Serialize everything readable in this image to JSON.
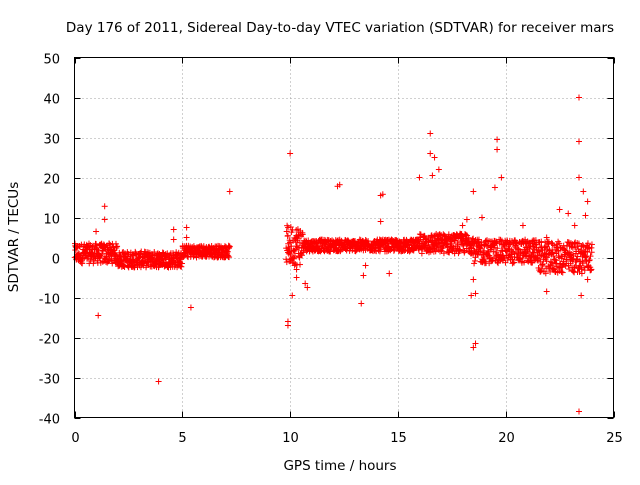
{
  "chart_data": {
    "type": "scatter",
    "title": "Day 176 of 2011, Sidereal Day-to-day VTEC variation (SDTVAR) for receiver mars",
    "xlabel": "GPS time / hours",
    "ylabel": "SDTVAR / TECUs",
    "xlim": [
      0,
      25
    ],
    "ylim": [
      -40,
      50
    ],
    "xticks": [
      0,
      5,
      10,
      15,
      20,
      25
    ],
    "yticks": [
      -40,
      -30,
      -20,
      -10,
      0,
      10,
      20,
      30,
      40,
      50
    ],
    "grid": true,
    "marker": "plus",
    "series_color": "#ff0000",
    "dense_bands": [
      {
        "x_start": 0.0,
        "x_end": 2.0,
        "y_center": 1.0,
        "y_spread": 2.5
      },
      {
        "x_start": 2.0,
        "x_end": 5.0,
        "y_center": -0.5,
        "y_spread": 2.0
      },
      {
        "x_start": 5.0,
        "x_end": 7.2,
        "y_center": 1.5,
        "y_spread": 1.5
      },
      {
        "x_start": 9.8,
        "x_end": 10.6,
        "y_center": 3.0,
        "y_spread": 5.0
      },
      {
        "x_start": 10.6,
        "x_end": 16.0,
        "y_center": 3.0,
        "y_spread": 1.5
      },
      {
        "x_start": 16.0,
        "x_end": 18.5,
        "y_center": 3.5,
        "y_spread": 2.5
      },
      {
        "x_start": 18.5,
        "x_end": 21.5,
        "y_center": 1.5,
        "y_spread": 3.0
      },
      {
        "x_start": 21.5,
        "x_end": 24.0,
        "y_center": 0.0,
        "y_spread": 4.0
      }
    ],
    "outliers": [
      {
        "x": 1.1,
        "y": -14.5
      },
      {
        "x": 1.4,
        "y": 12.8
      },
      {
        "x": 1.4,
        "y": 9.5
      },
      {
        "x": 1.0,
        "y": 6.5
      },
      {
        "x": 1.6,
        "y": 3.5
      },
      {
        "x": 3.9,
        "y": -31.0
      },
      {
        "x": 4.6,
        "y": 7.0
      },
      {
        "x": 4.6,
        "y": 4.5
      },
      {
        "x": 5.2,
        "y": 7.5
      },
      {
        "x": 5.2,
        "y": 5.0
      },
      {
        "x": 5.4,
        "y": -12.5
      },
      {
        "x": 7.2,
        "y": 16.5
      },
      {
        "x": 10.0,
        "y": 26.0
      },
      {
        "x": 9.9,
        "y": -16.0
      },
      {
        "x": 9.9,
        "y": -17.0
      },
      {
        "x": 10.1,
        "y": -9.5
      },
      {
        "x": 10.3,
        "y": -5.0
      },
      {
        "x": 10.3,
        "y": -3.0
      },
      {
        "x": 10.7,
        "y": -6.5
      },
      {
        "x": 10.8,
        "y": -7.5
      },
      {
        "x": 12.2,
        "y": 17.8
      },
      {
        "x": 12.3,
        "y": 18.2
      },
      {
        "x": 13.3,
        "y": -11.5
      },
      {
        "x": 13.4,
        "y": -4.5
      },
      {
        "x": 13.5,
        "y": -2.0
      },
      {
        "x": 14.2,
        "y": 15.5
      },
      {
        "x": 14.3,
        "y": 15.8
      },
      {
        "x": 14.2,
        "y": 9.0
      },
      {
        "x": 14.6,
        "y": -4.0
      },
      {
        "x": 16.5,
        "y": 31.0
      },
      {
        "x": 16.5,
        "y": 26.0
      },
      {
        "x": 16.7,
        "y": 25.0
      },
      {
        "x": 16.6,
        "y": 20.5
      },
      {
        "x": 16.9,
        "y": 22.0
      },
      {
        "x": 16.0,
        "y": 20.0
      },
      {
        "x": 18.0,
        "y": 8.0
      },
      {
        "x": 18.2,
        "y": 9.5
      },
      {
        "x": 18.5,
        "y": 16.5
      },
      {
        "x": 18.6,
        "y": -21.5
      },
      {
        "x": 18.5,
        "y": -22.5
      },
      {
        "x": 18.4,
        "y": -9.5
      },
      {
        "x": 18.6,
        "y": -9.0
      },
      {
        "x": 18.5,
        "y": -5.5
      },
      {
        "x": 18.9,
        "y": 10.0
      },
      {
        "x": 19.6,
        "y": 29.5
      },
      {
        "x": 19.6,
        "y": 27.0
      },
      {
        "x": 19.8,
        "y": 20.0
      },
      {
        "x": 19.5,
        "y": 17.5
      },
      {
        "x": 20.8,
        "y": 8.0
      },
      {
        "x": 21.9,
        "y": 5.0
      },
      {
        "x": 21.9,
        "y": -8.5
      },
      {
        "x": 22.5,
        "y": 12.0
      },
      {
        "x": 22.9,
        "y": 11.0
      },
      {
        "x": 23.2,
        "y": 8.0
      },
      {
        "x": 23.4,
        "y": 40.0
      },
      {
        "x": 23.4,
        "y": 29.0
      },
      {
        "x": 23.4,
        "y": 20.0
      },
      {
        "x": 23.6,
        "y": 16.5
      },
      {
        "x": 23.8,
        "y": 14.0
      },
      {
        "x": 23.5,
        "y": -9.5
      },
      {
        "x": 23.4,
        "y": -38.5
      },
      {
        "x": 23.8,
        "y": -5.5
      },
      {
        "x": 23.7,
        "y": 10.5
      }
    ]
  }
}
